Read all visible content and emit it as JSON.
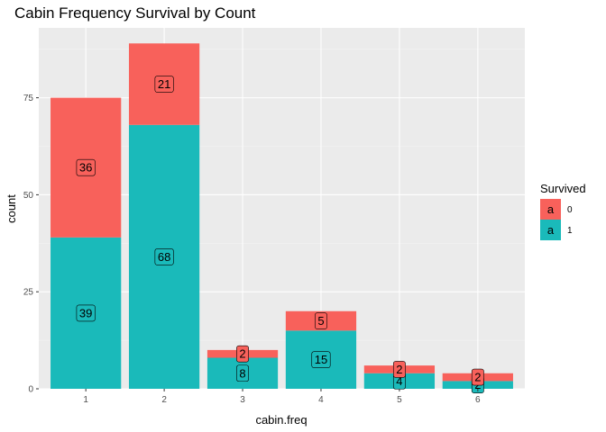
{
  "chart_data": {
    "type": "bar",
    "stacked": true,
    "title": "Cabin Frequency Survival by Count",
    "xlabel": "cabin.freq",
    "ylabel": "count",
    "categories": [
      "1",
      "2",
      "3",
      "4",
      "5",
      "6"
    ],
    "ylim": [
      0,
      93
    ],
    "yticks": [
      0,
      25,
      50,
      75
    ],
    "grid": true,
    "series": [
      {
        "name": "1",
        "values": [
          39,
          68,
          8,
          15,
          4,
          2
        ],
        "labels": [
          "39",
          "68",
          "8",
          "15",
          "4",
          "2"
        ],
        "color": "#1ABABA"
      },
      {
        "name": "0",
        "values": [
          36,
          21,
          2,
          5,
          2,
          2
        ],
        "labels": [
          "36",
          "21",
          "2",
          "5",
          "2",
          "2"
        ],
        "color": "#F8615B"
      }
    ],
    "legend": {
      "title": "Survived",
      "position": "right",
      "key_glyph": "a",
      "entries": [
        {
          "label": "0",
          "color": "#F8615B"
        },
        {
          "label": "1",
          "color": "#1ABABA"
        }
      ]
    }
  },
  "colors": {
    "panel": "#EBEBEB",
    "grid_major": "#FFFFFF",
    "grid_minor": "#F4F4F4"
  }
}
